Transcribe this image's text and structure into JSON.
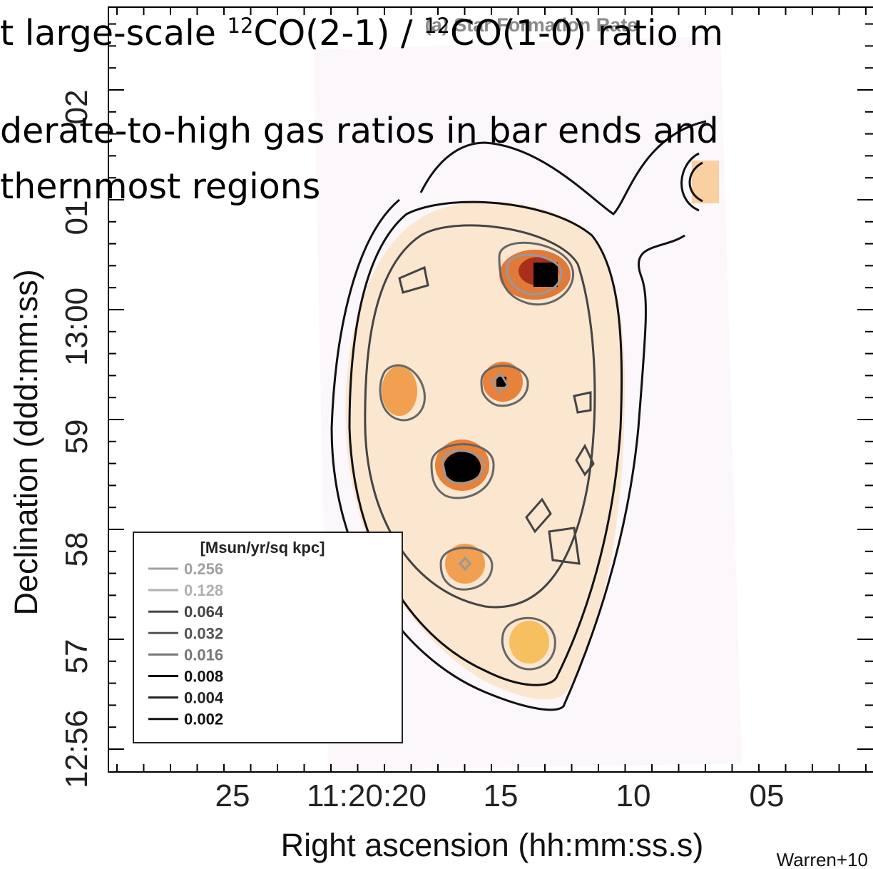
{
  "slide": {
    "lines": [
      [
        "t large-scale ",
        "12",
        "CO(2-1) / ",
        "12",
        "CO(1-0) ratio m"
      ],
      [
        "derate-to-high gas ratios in bar ends and"
      ],
      [
        "thernmost regions"
      ]
    ]
  },
  "figure": {
    "title": "(a) Star Formation Rate",
    "x_label": "Right ascension (hh:mm:ss.s)",
    "y_label": "Declination (ddd:mm:ss)",
    "x_ticks": [
      "25",
      "11:20:20",
      "15",
      "10",
      "05"
    ],
    "y_ticks": [
      "12:56",
      "57",
      "58",
      "59",
      "13:00",
      "01",
      "02"
    ],
    "legend": {
      "header": "[Msun/yr/sq kpc]",
      "entries": [
        "0.256",
        "0.128",
        "0.064",
        "0.032",
        "0.016",
        "0.008",
        "0.004",
        "0.002"
      ]
    },
    "credit": "Warren+10"
  }
}
